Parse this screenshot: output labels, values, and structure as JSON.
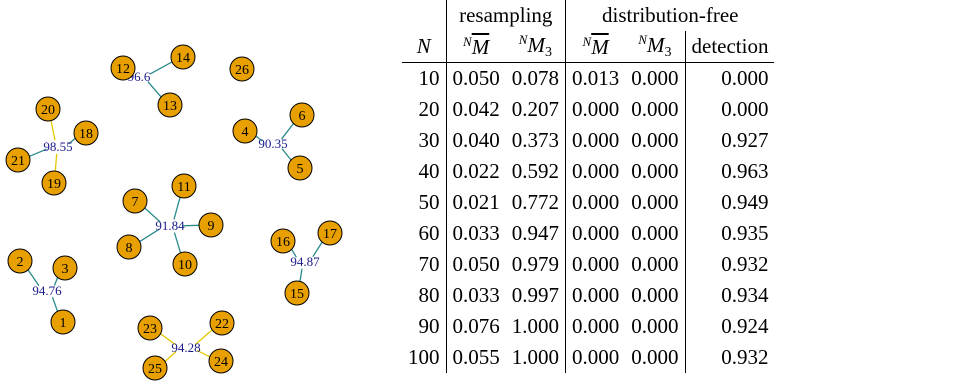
{
  "graph": {
    "node_fill": "#e8a000",
    "node_stroke": "#000000",
    "label_color": "#1a1a8c",
    "edge_teal": "#2a8a8a",
    "edge_yellow": "#e6c800",
    "clusters": [
      {
        "label": "96.6",
        "nodes": [
          "12",
          "14",
          "13"
        ]
      },
      {
        "label": "98.55",
        "nodes": [
          "20",
          "18",
          "21",
          "19"
        ]
      },
      {
        "label": "90.35",
        "nodes": [
          "4",
          "6",
          "5"
        ]
      },
      {
        "label": "91.84",
        "nodes": [
          "7",
          "11",
          "9",
          "8",
          "10"
        ]
      },
      {
        "label": "94.87",
        "nodes": [
          "16",
          "17",
          "15"
        ]
      },
      {
        "label": "94.76",
        "nodes": [
          "2",
          "3",
          "1"
        ]
      },
      {
        "label": "94.28",
        "nodes": [
          "23",
          "22",
          "25",
          "24"
        ]
      }
    ],
    "isolated": [
      "26"
    ]
  },
  "table": {
    "group_headers": [
      "resampling",
      "distribution-free"
    ],
    "col_N": "N",
    "col_detection": "detection",
    "sup_N": "N",
    "sym_M": "M",
    "sub_3": "3",
    "rows": [
      [
        "10",
        "0.050",
        "0.078",
        "0.013",
        "0.000",
        "0.000"
      ],
      [
        "20",
        "0.042",
        "0.207",
        "0.000",
        "0.000",
        "0.000"
      ],
      [
        "30",
        "0.040",
        "0.373",
        "0.000",
        "0.000",
        "0.927"
      ],
      [
        "40",
        "0.022",
        "0.592",
        "0.000",
        "0.000",
        "0.963"
      ],
      [
        "50",
        "0.021",
        "0.772",
        "0.000",
        "0.000",
        "0.949"
      ],
      [
        "60",
        "0.033",
        "0.947",
        "0.000",
        "0.000",
        "0.935"
      ],
      [
        "70",
        "0.050",
        "0.979",
        "0.000",
        "0.000",
        "0.932"
      ],
      [
        "80",
        "0.033",
        "0.997",
        "0.000",
        "0.000",
        "0.934"
      ],
      [
        "90",
        "0.076",
        "1.000",
        "0.000",
        "0.000",
        "0.924"
      ],
      [
        "100",
        "0.055",
        "1.000",
        "0.000",
        "0.000",
        "0.932"
      ]
    ]
  }
}
